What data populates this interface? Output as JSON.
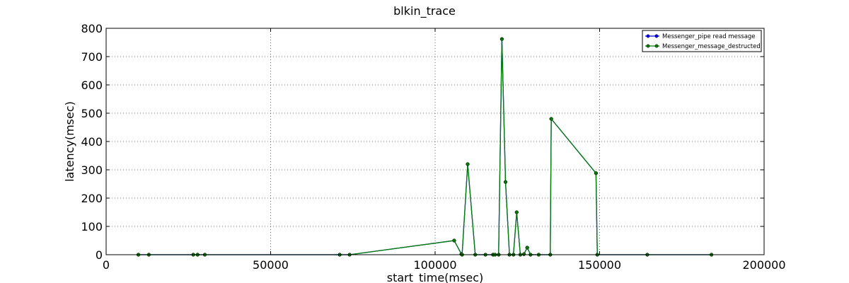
{
  "chart_data": {
    "type": "line",
    "title": "blkin_trace",
    "xlabel": "start_time(msec)",
    "ylabel": "latency(msec)",
    "xlim": [
      0,
      200000
    ],
    "ylim": [
      0,
      800
    ],
    "xticks": [
      0,
      50000,
      100000,
      150000,
      200000
    ],
    "xtick_labels": [
      "0",
      "50000",
      "100000",
      "150000",
      "200000"
    ],
    "yticks": [
      0,
      100,
      200,
      300,
      400,
      500,
      600,
      700,
      800
    ],
    "ytick_labels": [
      "0",
      "100",
      "200",
      "300",
      "400",
      "500",
      "600",
      "700",
      "800"
    ],
    "grid": true,
    "legend_position": "top-right",
    "series": [
      {
        "name": "Messenger_pipe read message",
        "color": "#0000ff",
        "x": [
          9800,
          13000,
          26500,
          27800,
          30000,
          71000,
          74000,
          105800,
          108000,
          108200,
          109900,
          112200,
          115300,
          117600,
          118200,
          119300,
          120300,
          121400,
          122600,
          123800,
          124800,
          125900,
          127000,
          128000,
          129000,
          131500,
          135000,
          135300,
          148900,
          149300,
          164500,
          184000
        ],
        "y": [
          0,
          0,
          0,
          0,
          0,
          0,
          0,
          50,
          2,
          0,
          320,
          0,
          0,
          0,
          0,
          0,
          762,
          257,
          0,
          0,
          150,
          0,
          2,
          25,
          0,
          0,
          0,
          480,
          288,
          0,
          0,
          0
        ]
      },
      {
        "name": "Messenger_message_destructed",
        "color": "#007f00",
        "x": [
          9800,
          13000,
          26500,
          27800,
          30000,
          71000,
          74000,
          105800,
          108000,
          108200,
          109900,
          112200,
          115300,
          117600,
          118200,
          119300,
          120300,
          121400,
          122600,
          123800,
          124800,
          125900,
          127000,
          128000,
          129000,
          131500,
          135000,
          135300,
          148900,
          149300,
          164500,
          184000
        ],
        "y": [
          0,
          0,
          0,
          0,
          0,
          0,
          0,
          50,
          2,
          0,
          320,
          0,
          0,
          0,
          0,
          0,
          762,
          257,
          0,
          0,
          150,
          0,
          2,
          25,
          0,
          0,
          0,
          480,
          288,
          0,
          0,
          0
        ]
      }
    ]
  }
}
